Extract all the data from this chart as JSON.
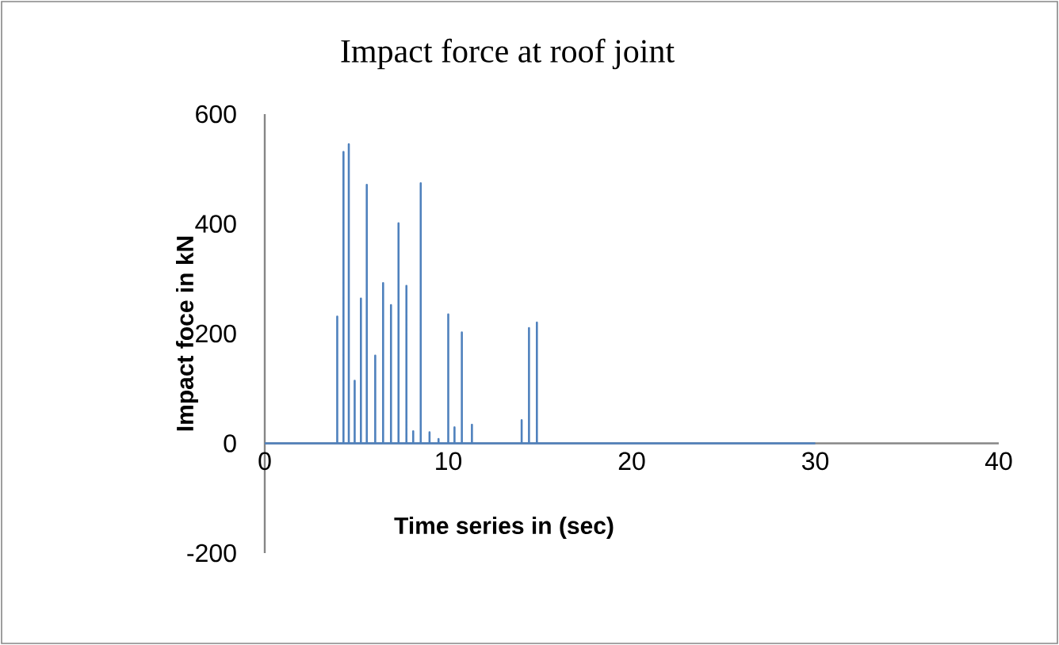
{
  "chart_data": {
    "type": "line",
    "title": "Impact force at roof joint",
    "xlabel": "Time series in (sec)",
    "ylabel": "Impact foce in kN",
    "color": "#4f81bd",
    "x": [
      0,
      3.95,
      3.95,
      3.95,
      4.29,
      4.29,
      4.29,
      4.58,
      4.58,
      4.58,
      4.9,
      4.9,
      4.9,
      5.24,
      5.24,
      5.24,
      5.56,
      5.56,
      5.56,
      6.02,
      6.02,
      6.02,
      6.45,
      6.45,
      6.45,
      6.88,
      6.88,
      6.88,
      7.29,
      7.29,
      7.29,
      7.72,
      7.72,
      7.72,
      8.09,
      8.09,
      8.09,
      8.5,
      8.5,
      8.5,
      8.98,
      8.98,
      8.98,
      9.47,
      9.47,
      9.47,
      10.0,
      10.0,
      10.0,
      10.34,
      10.34,
      10.34,
      10.74,
      10.74,
      10.74,
      11.29,
      11.29,
      11.29,
      14.0,
      14.0,
      14.0,
      14.4,
      14.4,
      14.4,
      14.83,
      14.83,
      14.83,
      30
    ],
    "values": [
      0,
      0,
      231,
      0,
      0,
      531,
      0,
      0,
      545,
      0,
      0,
      114,
      0,
      0,
      264,
      0,
      0,
      471,
      0,
      0,
      160,
      0,
      0,
      292,
      0,
      0,
      252,
      0,
      0,
      401,
      0,
      0,
      287,
      0,
      0,
      22,
      0,
      0,
      474,
      0,
      0,
      20,
      0,
      0,
      8,
      0,
      0,
      235,
      0,
      0,
      29,
      0,
      0,
      202,
      0,
      0,
      34,
      0,
      0,
      42,
      0,
      0,
      210,
      0,
      0,
      220,
      0,
      0
    ],
    "xlim": [
      0,
      40
    ],
    "ylim": [
      -200,
      600
    ],
    "xticks": [
      0,
      10,
      20,
      30,
      40
    ],
    "yticks": [
      -200,
      0,
      200,
      400,
      600
    ]
  }
}
